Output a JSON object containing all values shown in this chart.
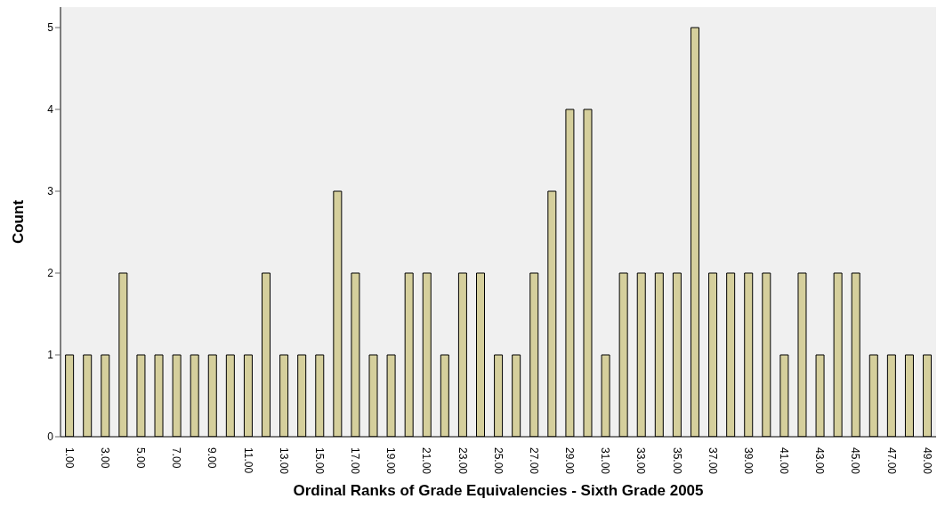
{
  "chart_data": {
    "type": "bar",
    "xlabel": "Ordinal Ranks of Grade Equivalencies - Sixth Grade 2005",
    "ylabel": "Count",
    "categories": [
      "1.00",
      null,
      "3.00",
      null,
      "5.00",
      null,
      "7.00",
      null,
      "9.00",
      null,
      "11.00",
      null,
      "13.00",
      null,
      "15.00",
      null,
      "17.00",
      null,
      "19.00",
      null,
      "21.00",
      null,
      "23.00",
      null,
      "25.00",
      null,
      "27.00",
      null,
      "29.00",
      null,
      "31.00",
      null,
      "33.00",
      null,
      "35.00",
      null,
      "37.00",
      null,
      "39.00",
      null,
      "41.00",
      null,
      "43.00",
      null,
      "45.00",
      null,
      "47.00",
      null,
      "49.00"
    ],
    "values": [
      1,
      1,
      1,
      2,
      1,
      1,
      1,
      1,
      1,
      1,
      1,
      2,
      1,
      1,
      1,
      3,
      2,
      1,
      1,
      2,
      2,
      1,
      2,
      2,
      1,
      1,
      2,
      3,
      4,
      4,
      1,
      2,
      2,
      2,
      2,
      5,
      2,
      2,
      2,
      2,
      1,
      2,
      1,
      2,
      2,
      1,
      1,
      1,
      1
    ],
    "color": "#d5cf9c",
    "ylim": [
      0,
      5.25
    ],
    "yticks": [
      0,
      1,
      2,
      3,
      4,
      5
    ]
  }
}
